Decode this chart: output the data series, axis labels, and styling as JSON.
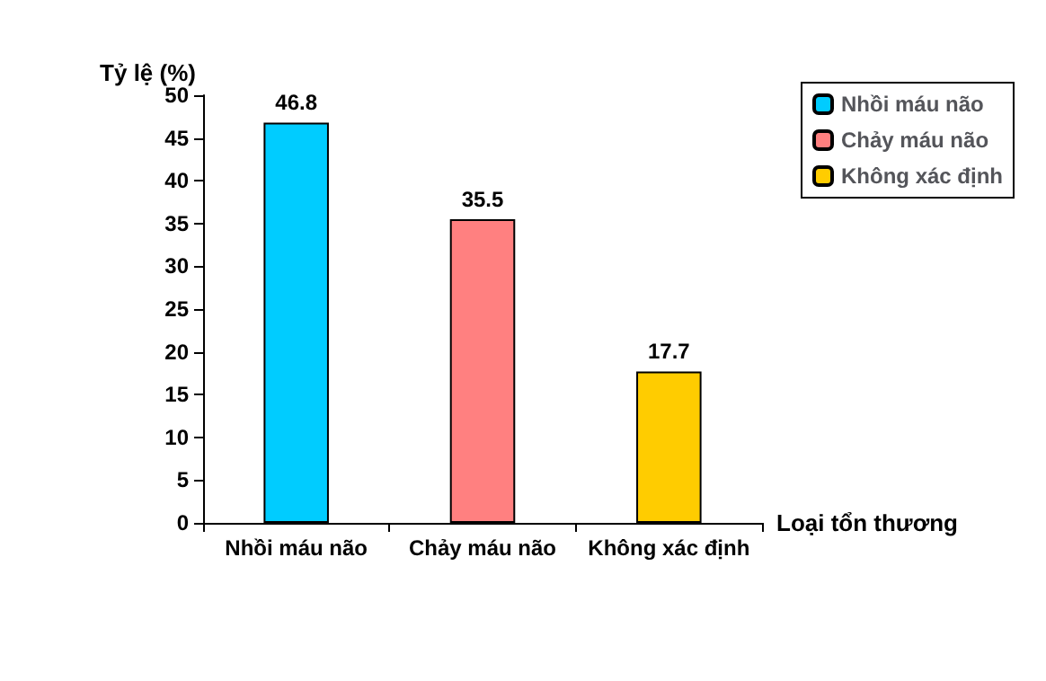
{
  "chart_data": {
    "type": "bar",
    "xlabel": "Loại tổn thương",
    "ylabel": "Tỷ lệ (%)",
    "categories": [
      "Nhồi máu não",
      "Chảy máu não",
      "Không xác định"
    ],
    "series": [
      {
        "name": "Nhồi máu não",
        "color": "#00ccff",
        "values": [
          46.8,
          null,
          null
        ]
      },
      {
        "name": "Chảy máu não",
        "color": "#ff8080",
        "values": [
          null,
          35.5,
          null
        ]
      },
      {
        "name": "Không xác định",
        "color": "#ffcc00",
        "values": [
          null,
          null,
          17.7
        ]
      }
    ],
    "ylim": [
      0,
      50
    ],
    "yticks": [
      0,
      5,
      10,
      15,
      20,
      25,
      30,
      35,
      40,
      45,
      50
    ],
    "data_labels": true,
    "grid": false,
    "legend": "top right"
  }
}
